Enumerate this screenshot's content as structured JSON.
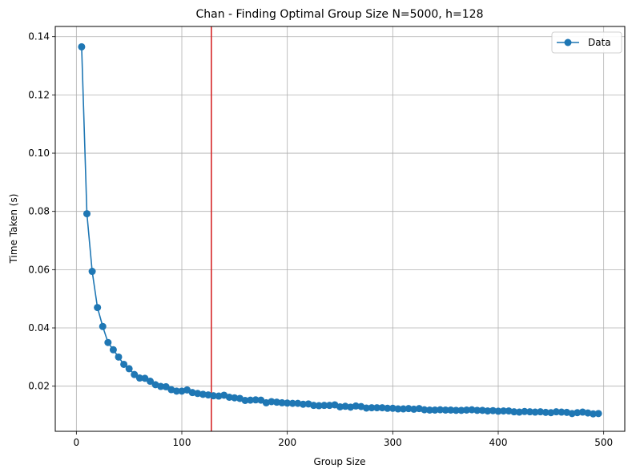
{
  "chart_data": {
    "type": "line",
    "title": "Chan - Finding Optimal Group Size N=5000, h=128",
    "xlabel": "Group Size",
    "ylabel": "Time Taken (s)",
    "xlim": [
      -20,
      520
    ],
    "ylim": [
      0.0045,
      0.1435
    ],
    "xticks": [
      0,
      100,
      200,
      300,
      400,
      500
    ],
    "yticks": [
      0.02,
      0.04,
      0.06,
      0.08,
      0.1,
      0.12,
      0.14
    ],
    "xtick_labels": [
      "0",
      "100",
      "200",
      "300",
      "400",
      "500"
    ],
    "ytick_labels": [
      "0.02",
      "0.04",
      "0.06",
      "0.08",
      "0.10",
      "0.12",
      "0.14"
    ],
    "grid": true,
    "legend_position": "top-right",
    "series": [
      {
        "name": "Data",
        "color": "#1f77b4",
        "marker": "circle",
        "x": [
          5,
          10,
          15,
          20,
          25,
          30,
          35,
          40,
          45,
          50,
          55,
          60,
          65,
          70,
          75,
          80,
          85,
          90,
          95,
          100,
          105,
          110,
          115,
          120,
          125,
          130,
          135,
          140,
          145,
          150,
          155,
          160,
          165,
          170,
          175,
          180,
          185,
          190,
          195,
          200,
          205,
          210,
          215,
          220,
          225,
          230,
          235,
          240,
          245,
          250,
          255,
          260,
          265,
          270,
          275,
          280,
          285,
          290,
          295,
          300,
          305,
          310,
          315,
          320,
          325,
          330,
          335,
          340,
          345,
          350,
          355,
          360,
          365,
          370,
          375,
          380,
          385,
          390,
          395,
          400,
          405,
          410,
          415,
          420,
          425,
          430,
          435,
          440,
          445,
          450,
          455,
          460,
          465,
          470,
          475,
          480,
          485,
          490,
          495
        ],
        "y": [
          0.1365,
          0.0792,
          0.0594,
          0.047,
          0.0405,
          0.035,
          0.0325,
          0.03,
          0.0275,
          0.026,
          0.024,
          0.0228,
          0.0227,
          0.0217,
          0.0205,
          0.0199,
          0.0198,
          0.0188,
          0.0183,
          0.0183,
          0.0187,
          0.0178,
          0.0175,
          0.0172,
          0.017,
          0.0167,
          0.0166,
          0.0169,
          0.0162,
          0.016,
          0.0158,
          0.0151,
          0.0152,
          0.0153,
          0.0152,
          0.0143,
          0.0147,
          0.0145,
          0.0143,
          0.0142,
          0.0141,
          0.0141,
          0.0138,
          0.0139,
          0.0134,
          0.0133,
          0.0134,
          0.0134,
          0.0136,
          0.0129,
          0.0131,
          0.0128,
          0.0132,
          0.013,
          0.0125,
          0.0126,
          0.0126,
          0.0126,
          0.0124,
          0.0124,
          0.0122,
          0.0122,
          0.0123,
          0.0121,
          0.0123,
          0.0119,
          0.0118,
          0.0118,
          0.0119,
          0.0118,
          0.0118,
          0.0117,
          0.0117,
          0.0118,
          0.0119,
          0.0117,
          0.0117,
          0.0115,
          0.0116,
          0.0114,
          0.0115,
          0.0115,
          0.0112,
          0.0111,
          0.0113,
          0.0112,
          0.0111,
          0.0112,
          0.011,
          0.0109,
          0.0112,
          0.0111,
          0.011,
          0.0106,
          0.0109,
          0.0111,
          0.0108,
          0.0105,
          0.0106
        ]
      }
    ],
    "vline": {
      "x": 128,
      "color": "#d62728"
    }
  }
}
